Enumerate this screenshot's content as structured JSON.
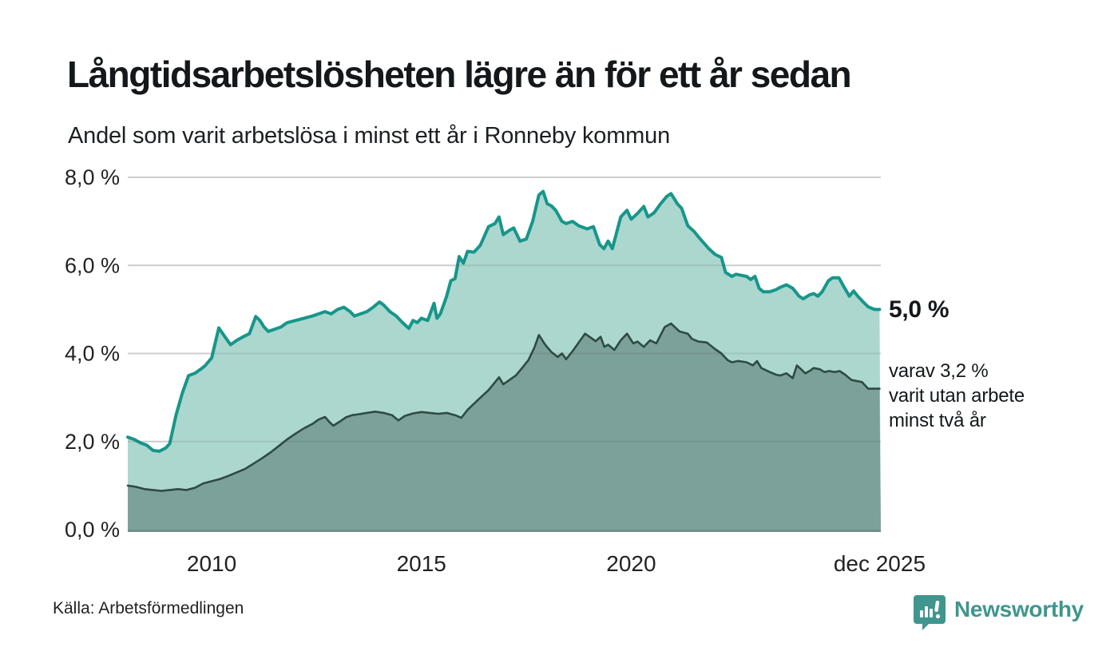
{
  "header": {
    "title": "Långtidsarbetslösheten lägre än för ett år sedan",
    "subtitle": "Andel som varit arbetslösa i minst ett år i Ronneby kommun"
  },
  "chart_data": {
    "type": "area",
    "title": "Långtidsarbetslösheten lägre än för ett år sedan",
    "subtitle": "Andel som varit arbetslösa i minst ett år i Ronneby kommun",
    "unit": "%",
    "x_axis": {
      "range": [
        2008.0,
        2025.95
      ],
      "ticks": [
        {
          "label": "2010",
          "year": 2010.0
        },
        {
          "label": "2015",
          "year": 2015.0
        },
        {
          "label": "2020",
          "year": 2020.0
        },
        {
          "label": "dec 2025",
          "year": 2025.92
        }
      ]
    },
    "y_axis": {
      "range": [
        0,
        8
      ],
      "grid": true,
      "ticks": [
        {
          "label": "8,0 %",
          "value": 8
        },
        {
          "label": "6,0 %",
          "value": 6
        },
        {
          "label": "4,0 %",
          "value": 4
        },
        {
          "label": "2,0 %",
          "value": 2
        },
        {
          "label": "0,0 %",
          "value": 0
        }
      ]
    },
    "legend_position": "none",
    "series": [
      {
        "name": "Andel arbetslösa minst ett år",
        "latest_value_label": "5,0 %",
        "line_color": "#17968a",
        "fill_color": "#abd7cf",
        "points": [
          [
            2008.0,
            2.1
          ],
          [
            2008.15,
            2.05
          ],
          [
            2008.3,
            1.97
          ],
          [
            2008.45,
            1.92
          ],
          [
            2008.6,
            1.8
          ],
          [
            2008.75,
            1.78
          ],
          [
            2008.9,
            1.85
          ],
          [
            2009.0,
            1.95
          ],
          [
            2009.15,
            2.6
          ],
          [
            2009.3,
            3.1
          ],
          [
            2009.45,
            3.5
          ],
          [
            2009.6,
            3.55
          ],
          [
            2009.75,
            3.65
          ],
          [
            2009.85,
            3.73
          ],
          [
            2010.0,
            3.9
          ],
          [
            2010.1,
            4.3
          ],
          [
            2010.17,
            4.58
          ],
          [
            2010.3,
            4.4
          ],
          [
            2010.45,
            4.2
          ],
          [
            2010.6,
            4.3
          ],
          [
            2010.75,
            4.38
          ],
          [
            2010.9,
            4.45
          ],
          [
            2011.05,
            4.84
          ],
          [
            2011.15,
            4.75
          ],
          [
            2011.25,
            4.6
          ],
          [
            2011.35,
            4.5
          ],
          [
            2011.5,
            4.55
          ],
          [
            2011.65,
            4.6
          ],
          [
            2011.8,
            4.7
          ],
          [
            2012.0,
            4.75
          ],
          [
            2012.2,
            4.8
          ],
          [
            2012.4,
            4.85
          ],
          [
            2012.55,
            4.9
          ],
          [
            2012.7,
            4.95
          ],
          [
            2012.85,
            4.9
          ],
          [
            2013.0,
            5.0
          ],
          [
            2013.15,
            5.05
          ],
          [
            2013.3,
            4.95
          ],
          [
            2013.4,
            4.85
          ],
          [
            2013.55,
            4.9
          ],
          [
            2013.7,
            4.95
          ],
          [
            2013.85,
            5.05
          ],
          [
            2014.0,
            5.17
          ],
          [
            2014.1,
            5.1
          ],
          [
            2014.25,
            4.95
          ],
          [
            2014.4,
            4.85
          ],
          [
            2014.55,
            4.7
          ],
          [
            2014.7,
            4.57
          ],
          [
            2014.8,
            4.75
          ],
          [
            2014.9,
            4.7
          ],
          [
            2015.0,
            4.8
          ],
          [
            2015.15,
            4.75
          ],
          [
            2015.3,
            5.14
          ],
          [
            2015.37,
            4.8
          ],
          [
            2015.45,
            4.9
          ],
          [
            2015.6,
            5.3
          ],
          [
            2015.7,
            5.65
          ],
          [
            2015.8,
            5.7
          ],
          [
            2015.9,
            6.2
          ],
          [
            2016.0,
            6.05
          ],
          [
            2016.1,
            6.32
          ],
          [
            2016.25,
            6.3
          ],
          [
            2016.4,
            6.45
          ],
          [
            2016.6,
            6.88
          ],
          [
            2016.75,
            6.95
          ],
          [
            2016.85,
            7.1
          ],
          [
            2016.95,
            6.7
          ],
          [
            2017.1,
            6.8
          ],
          [
            2017.2,
            6.85
          ],
          [
            2017.35,
            6.55
          ],
          [
            2017.5,
            6.6
          ],
          [
            2017.65,
            7.0
          ],
          [
            2017.8,
            7.6
          ],
          [
            2017.9,
            7.68
          ],
          [
            2018.0,
            7.4
          ],
          [
            2018.1,
            7.35
          ],
          [
            2018.2,
            7.25
          ],
          [
            2018.35,
            7.0
          ],
          [
            2018.45,
            6.95
          ],
          [
            2018.6,
            7.0
          ],
          [
            2018.75,
            6.9
          ],
          [
            2018.95,
            6.83
          ],
          [
            2019.1,
            6.88
          ],
          [
            2019.25,
            6.47
          ],
          [
            2019.35,
            6.38
          ],
          [
            2019.45,
            6.55
          ],
          [
            2019.55,
            6.38
          ],
          [
            2019.75,
            7.1
          ],
          [
            2019.9,
            7.25
          ],
          [
            2020.0,
            7.05
          ],
          [
            2020.15,
            7.18
          ],
          [
            2020.3,
            7.34
          ],
          [
            2020.4,
            7.1
          ],
          [
            2020.55,
            7.2
          ],
          [
            2020.7,
            7.4
          ],
          [
            2020.85,
            7.57
          ],
          [
            2020.95,
            7.63
          ],
          [
            2021.1,
            7.4
          ],
          [
            2021.2,
            7.3
          ],
          [
            2021.35,
            6.9
          ],
          [
            2021.5,
            6.77
          ],
          [
            2021.6,
            6.65
          ],
          [
            2021.85,
            6.38
          ],
          [
            2022.0,
            6.25
          ],
          [
            2022.15,
            6.18
          ],
          [
            2022.25,
            5.84
          ],
          [
            2022.4,
            5.75
          ],
          [
            2022.5,
            5.8
          ],
          [
            2022.6,
            5.78
          ],
          [
            2022.75,
            5.75
          ],
          [
            2022.85,
            5.68
          ],
          [
            2022.95,
            5.75
          ],
          [
            2023.05,
            5.48
          ],
          [
            2023.15,
            5.4
          ],
          [
            2023.3,
            5.4
          ],
          [
            2023.45,
            5.45
          ],
          [
            2023.55,
            5.5
          ],
          [
            2023.7,
            5.56
          ],
          [
            2023.85,
            5.48
          ],
          [
            2024.0,
            5.3
          ],
          [
            2024.1,
            5.24
          ],
          [
            2024.25,
            5.33
          ],
          [
            2024.35,
            5.36
          ],
          [
            2024.45,
            5.3
          ],
          [
            2024.55,
            5.4
          ],
          [
            2024.7,
            5.65
          ],
          [
            2024.8,
            5.72
          ],
          [
            2024.95,
            5.72
          ],
          [
            2025.05,
            5.55
          ],
          [
            2025.2,
            5.3
          ],
          [
            2025.3,
            5.42
          ],
          [
            2025.4,
            5.3
          ],
          [
            2025.55,
            5.15
          ],
          [
            2025.65,
            5.06
          ],
          [
            2025.8,
            5.0
          ],
          [
            2025.92,
            5.0
          ]
        ]
      },
      {
        "name": "varav utan arbete minst två år",
        "latest_value_label": "3,2 %",
        "line_color": "#2e4a45",
        "fill_color": "#7ba19a",
        "points": [
          [
            2008.0,
            1.0
          ],
          [
            2008.2,
            0.97
          ],
          [
            2008.4,
            0.92
          ],
          [
            2008.6,
            0.9
          ],
          [
            2008.8,
            0.88
          ],
          [
            2009.0,
            0.9
          ],
          [
            2009.2,
            0.92
          ],
          [
            2009.4,
            0.9
          ],
          [
            2009.6,
            0.95
          ],
          [
            2009.8,
            1.05
          ],
          [
            2010.0,
            1.1
          ],
          [
            2010.2,
            1.15
          ],
          [
            2010.4,
            1.22
          ],
          [
            2010.6,
            1.3
          ],
          [
            2010.8,
            1.38
          ],
          [
            2011.0,
            1.5
          ],
          [
            2011.2,
            1.62
          ],
          [
            2011.4,
            1.75
          ],
          [
            2011.6,
            1.9
          ],
          [
            2011.8,
            2.05
          ],
          [
            2012.0,
            2.18
          ],
          [
            2012.2,
            2.3
          ],
          [
            2012.4,
            2.4
          ],
          [
            2012.55,
            2.5
          ],
          [
            2012.7,
            2.56
          ],
          [
            2012.8,
            2.45
          ],
          [
            2012.9,
            2.36
          ],
          [
            2013.05,
            2.45
          ],
          [
            2013.2,
            2.55
          ],
          [
            2013.35,
            2.6
          ],
          [
            2013.5,
            2.62
          ],
          [
            2013.7,
            2.65
          ],
          [
            2013.9,
            2.68
          ],
          [
            2014.1,
            2.65
          ],
          [
            2014.3,
            2.6
          ],
          [
            2014.45,
            2.48
          ],
          [
            2014.6,
            2.58
          ],
          [
            2014.8,
            2.64
          ],
          [
            2015.0,
            2.67
          ],
          [
            2015.2,
            2.65
          ],
          [
            2015.4,
            2.63
          ],
          [
            2015.6,
            2.65
          ],
          [
            2015.8,
            2.6
          ],
          [
            2015.95,
            2.54
          ],
          [
            2016.1,
            2.72
          ],
          [
            2016.35,
            2.95
          ],
          [
            2016.6,
            3.17
          ],
          [
            2016.85,
            3.46
          ],
          [
            2016.95,
            3.3
          ],
          [
            2017.1,
            3.4
          ],
          [
            2017.25,
            3.5
          ],
          [
            2017.4,
            3.67
          ],
          [
            2017.55,
            3.85
          ],
          [
            2017.7,
            4.15
          ],
          [
            2017.8,
            4.42
          ],
          [
            2017.95,
            4.2
          ],
          [
            2018.1,
            4.03
          ],
          [
            2018.25,
            3.92
          ],
          [
            2018.35,
            4.0
          ],
          [
            2018.45,
            3.87
          ],
          [
            2018.6,
            4.05
          ],
          [
            2018.75,
            4.25
          ],
          [
            2018.9,
            4.45
          ],
          [
            2019.05,
            4.35
          ],
          [
            2019.15,
            4.28
          ],
          [
            2019.27,
            4.38
          ],
          [
            2019.36,
            4.15
          ],
          [
            2019.45,
            4.2
          ],
          [
            2019.6,
            4.08
          ],
          [
            2019.75,
            4.3
          ],
          [
            2019.9,
            4.45
          ],
          [
            2020.05,
            4.23
          ],
          [
            2020.15,
            4.27
          ],
          [
            2020.3,
            4.15
          ],
          [
            2020.45,
            4.3
          ],
          [
            2020.6,
            4.23
          ],
          [
            2020.8,
            4.6
          ],
          [
            2020.95,
            4.68
          ],
          [
            2021.15,
            4.5
          ],
          [
            2021.35,
            4.45
          ],
          [
            2021.45,
            4.33
          ],
          [
            2021.6,
            4.27
          ],
          [
            2021.8,
            4.25
          ],
          [
            2022.0,
            4.1
          ],
          [
            2022.15,
            4.0
          ],
          [
            2022.3,
            3.85
          ],
          [
            2022.4,
            3.8
          ],
          [
            2022.55,
            3.83
          ],
          [
            2022.75,
            3.8
          ],
          [
            2022.9,
            3.73
          ],
          [
            2023.0,
            3.83
          ],
          [
            2023.1,
            3.67
          ],
          [
            2023.3,
            3.58
          ],
          [
            2023.45,
            3.52
          ],
          [
            2023.55,
            3.5
          ],
          [
            2023.7,
            3.55
          ],
          [
            2023.85,
            3.44
          ],
          [
            2023.95,
            3.73
          ],
          [
            2024.05,
            3.64
          ],
          [
            2024.15,
            3.55
          ],
          [
            2024.25,
            3.6
          ],
          [
            2024.35,
            3.67
          ],
          [
            2024.5,
            3.64
          ],
          [
            2024.6,
            3.58
          ],
          [
            2024.72,
            3.6
          ],
          [
            2024.85,
            3.58
          ],
          [
            2024.97,
            3.6
          ],
          [
            2025.1,
            3.52
          ],
          [
            2025.25,
            3.4
          ],
          [
            2025.4,
            3.37
          ],
          [
            2025.5,
            3.35
          ],
          [
            2025.65,
            3.2
          ],
          [
            2025.92,
            3.2
          ]
        ]
      }
    ]
  },
  "annotations": {
    "latest_total": "5,0 %",
    "detail_lines": [
      "varav 3,2 %",
      "varit utan arbete",
      "minst två år"
    ]
  },
  "footer": {
    "source": "Källa: Arbetsförmedlingen",
    "brand": "Newsworthy"
  },
  "colors": {
    "grid": "#e2e2e2",
    "grid_over_fill": "rgba(70,70,70,0.13)",
    "baseline": "#6e9189",
    "axis_text": "#222222",
    "brand_teal": "#3e968e"
  }
}
